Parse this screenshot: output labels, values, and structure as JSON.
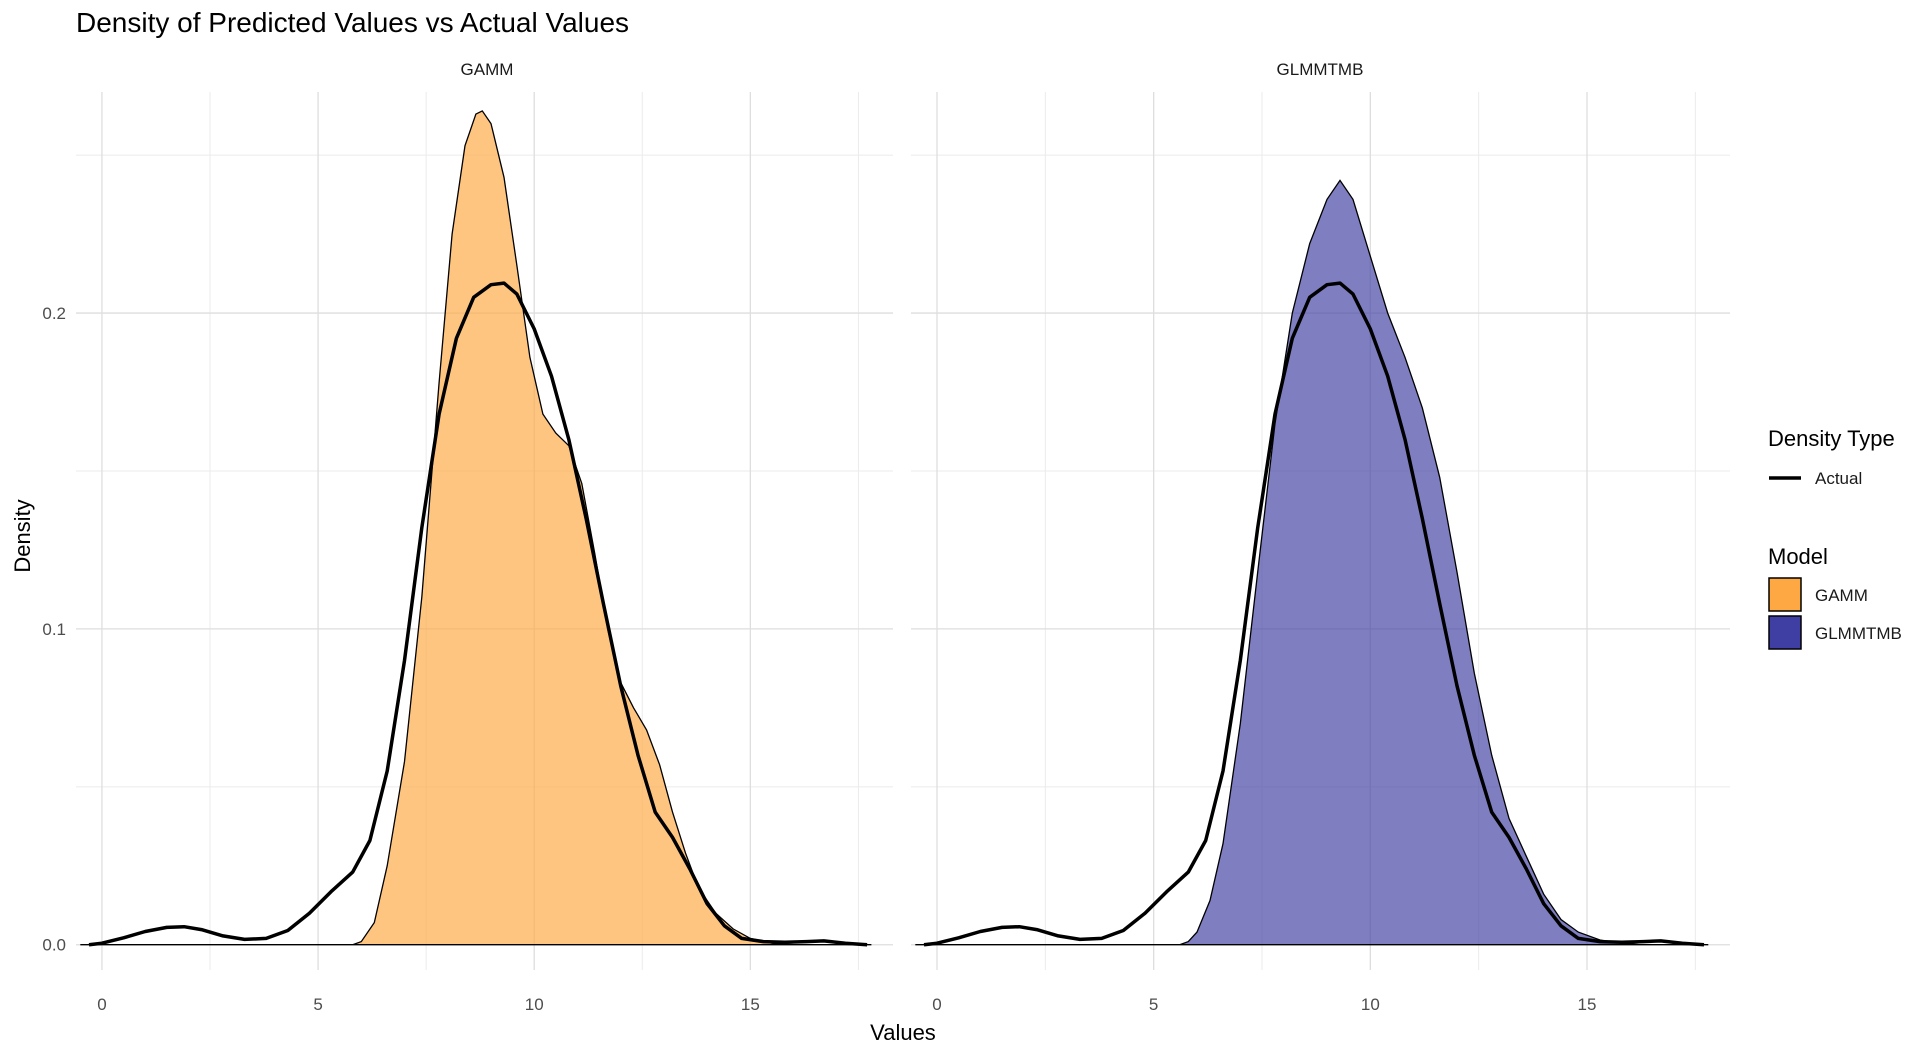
{
  "chart_data": {
    "type": "area",
    "title": "Density of Predicted Values vs Actual Values",
    "xlabel": "Values",
    "ylabel": "Density",
    "xlim": [
      -0.6,
      18.3
    ],
    "ylim": [
      -0.008,
      0.27
    ],
    "x_ticks": [
      0,
      5,
      10,
      15
    ],
    "y_ticks": [
      0.0,
      0.1,
      0.2
    ],
    "y_tick_labels": [
      "0.0",
      "0.1",
      "0.2"
    ],
    "grid": true,
    "colors": {
      "GAMM": "#FDA843",
      "GLMMTMB": "#3F3FA3",
      "actual_line": "#000000"
    },
    "legends": [
      {
        "title": "Density Type",
        "entries": [
          {
            "label": "Actual",
            "kind": "line"
          }
        ]
      },
      {
        "title": "Model",
        "entries": [
          {
            "label": "GAMM",
            "kind": "fill",
            "color": "#FDA843"
          },
          {
            "label": "GLMMTMB",
            "kind": "fill",
            "color": "#3F3FA3"
          }
        ]
      }
    ],
    "panels": [
      {
        "strip": "GAMM",
        "fill_color": "#FDA843",
        "predicted": [
          [
            -0.5,
            0
          ],
          [
            5.8,
            0
          ],
          [
            6.0,
            0.001
          ],
          [
            6.3,
            0.007
          ],
          [
            6.6,
            0.025
          ],
          [
            7.0,
            0.058
          ],
          [
            7.4,
            0.11
          ],
          [
            7.8,
            0.178
          ],
          [
            8.1,
            0.225
          ],
          [
            8.4,
            0.253
          ],
          [
            8.65,
            0.263
          ],
          [
            8.8,
            0.264
          ],
          [
            9.0,
            0.26
          ],
          [
            9.3,
            0.243
          ],
          [
            9.6,
            0.215
          ],
          [
            9.9,
            0.186
          ],
          [
            10.2,
            0.168
          ],
          [
            10.5,
            0.162
          ],
          [
            10.8,
            0.158
          ],
          [
            11.1,
            0.146
          ],
          [
            11.4,
            0.124
          ],
          [
            11.7,
            0.1
          ],
          [
            12.0,
            0.083
          ],
          [
            12.3,
            0.075
          ],
          [
            12.6,
            0.068
          ],
          [
            12.9,
            0.057
          ],
          [
            13.2,
            0.042
          ],
          [
            13.5,
            0.029
          ],
          [
            13.8,
            0.018
          ],
          [
            14.2,
            0.01
          ],
          [
            14.6,
            0.005
          ],
          [
            15.0,
            0.002
          ],
          [
            15.5,
            0.0005
          ],
          [
            16.0,
            0
          ],
          [
            17.8,
            0
          ]
        ],
        "actual": [
          [
            -0.3,
            0
          ],
          [
            0.0,
            0.0005
          ],
          [
            0.5,
            0.0022
          ],
          [
            1.0,
            0.0042
          ],
          [
            1.5,
            0.0055
          ],
          [
            1.9,
            0.0057
          ],
          [
            2.3,
            0.0048
          ],
          [
            2.8,
            0.0028
          ],
          [
            3.3,
            0.0017
          ],
          [
            3.8,
            0.002
          ],
          [
            4.3,
            0.0045
          ],
          [
            4.8,
            0.01
          ],
          [
            5.3,
            0.0168
          ],
          [
            5.8,
            0.023
          ],
          [
            6.2,
            0.033
          ],
          [
            6.6,
            0.055
          ],
          [
            7.0,
            0.09
          ],
          [
            7.4,
            0.132
          ],
          [
            7.8,
            0.168
          ],
          [
            8.2,
            0.192
          ],
          [
            8.6,
            0.205
          ],
          [
            9.0,
            0.209
          ],
          [
            9.3,
            0.2095
          ],
          [
            9.6,
            0.206
          ],
          [
            10.0,
            0.195
          ],
          [
            10.4,
            0.18
          ],
          [
            10.8,
            0.16
          ],
          [
            11.2,
            0.135
          ],
          [
            11.6,
            0.108
          ],
          [
            12.0,
            0.082
          ],
          [
            12.4,
            0.06
          ],
          [
            12.8,
            0.042
          ],
          [
            13.2,
            0.034
          ],
          [
            13.6,
            0.024
          ],
          [
            14.0,
            0.013
          ],
          [
            14.4,
            0.006
          ],
          [
            14.8,
            0.002
          ],
          [
            15.3,
            0.001
          ],
          [
            15.8,
            0.0008
          ],
          [
            16.3,
            0.001
          ],
          [
            16.7,
            0.0012
          ],
          [
            17.2,
            0.0005
          ],
          [
            17.7,
            0
          ]
        ]
      },
      {
        "strip": "GLMMTMB",
        "fill_color": "#3F3FA3",
        "predicted": [
          [
            -0.5,
            0
          ],
          [
            5.6,
            0
          ],
          [
            5.8,
            0.001
          ],
          [
            6.0,
            0.004
          ],
          [
            6.3,
            0.014
          ],
          [
            6.6,
            0.032
          ],
          [
            7.0,
            0.07
          ],
          [
            7.4,
            0.118
          ],
          [
            7.8,
            0.165
          ],
          [
            8.2,
            0.2
          ],
          [
            8.6,
            0.222
          ],
          [
            9.0,
            0.236
          ],
          [
            9.3,
            0.242
          ],
          [
            9.6,
            0.236
          ],
          [
            10.0,
            0.218
          ],
          [
            10.4,
            0.2
          ],
          [
            10.8,
            0.186
          ],
          [
            11.2,
            0.17
          ],
          [
            11.6,
            0.148
          ],
          [
            12.0,
            0.118
          ],
          [
            12.4,
            0.086
          ],
          [
            12.8,
            0.06
          ],
          [
            13.2,
            0.04
          ],
          [
            13.6,
            0.028
          ],
          [
            14.0,
            0.016
          ],
          [
            14.4,
            0.008
          ],
          [
            14.8,
            0.004
          ],
          [
            15.3,
            0.0015
          ],
          [
            15.8,
            0.0005
          ],
          [
            16.2,
            0
          ],
          [
            17.8,
            0
          ]
        ],
        "actual": [
          [
            -0.3,
            0
          ],
          [
            0.0,
            0.0005
          ],
          [
            0.5,
            0.0022
          ],
          [
            1.0,
            0.0042
          ],
          [
            1.5,
            0.0055
          ],
          [
            1.9,
            0.0057
          ],
          [
            2.3,
            0.0048
          ],
          [
            2.8,
            0.0028
          ],
          [
            3.3,
            0.0017
          ],
          [
            3.8,
            0.002
          ],
          [
            4.3,
            0.0045
          ],
          [
            4.8,
            0.01
          ],
          [
            5.3,
            0.0168
          ],
          [
            5.8,
            0.023
          ],
          [
            6.2,
            0.033
          ],
          [
            6.6,
            0.055
          ],
          [
            7.0,
            0.09
          ],
          [
            7.4,
            0.132
          ],
          [
            7.8,
            0.168
          ],
          [
            8.2,
            0.192
          ],
          [
            8.6,
            0.205
          ],
          [
            9.0,
            0.209
          ],
          [
            9.3,
            0.2095
          ],
          [
            9.6,
            0.206
          ],
          [
            10.0,
            0.195
          ],
          [
            10.4,
            0.18
          ],
          [
            10.8,
            0.16
          ],
          [
            11.2,
            0.135
          ],
          [
            11.6,
            0.108
          ],
          [
            12.0,
            0.082
          ],
          [
            12.4,
            0.06
          ],
          [
            12.8,
            0.042
          ],
          [
            13.2,
            0.034
          ],
          [
            13.6,
            0.024
          ],
          [
            14.0,
            0.013
          ],
          [
            14.4,
            0.006
          ],
          [
            14.8,
            0.002
          ],
          [
            15.3,
            0.001
          ],
          [
            15.8,
            0.0008
          ],
          [
            16.3,
            0.001
          ],
          [
            16.7,
            0.0012
          ],
          [
            17.2,
            0.0005
          ],
          [
            17.7,
            0
          ]
        ]
      }
    ]
  }
}
